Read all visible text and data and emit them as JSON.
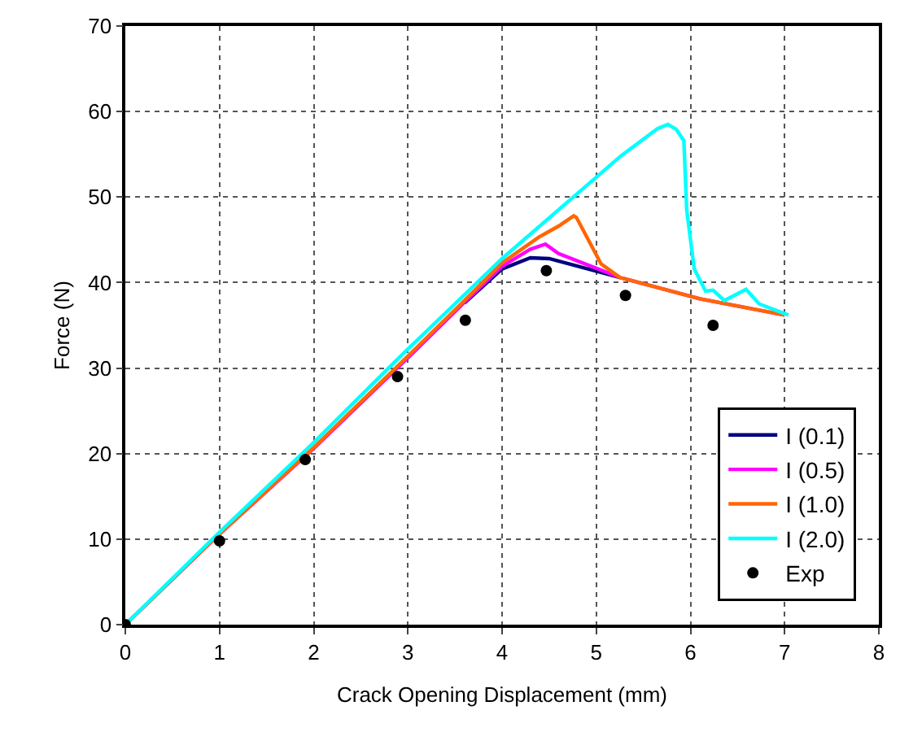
{
  "chart_data": {
    "type": "line",
    "xlabel": "Crack Opening Displacement (mm)",
    "ylabel": "Force (N)",
    "xlim": [
      0,
      8
    ],
    "ylim": [
      0,
      70
    ],
    "xticks": [
      0,
      1,
      2,
      3,
      4,
      5,
      6,
      7,
      8
    ],
    "yticks": [
      0,
      10,
      20,
      30,
      40,
      50,
      60,
      70
    ],
    "grid": true,
    "legend": "bottom right",
    "line_style": "solid",
    "series": [
      {
        "name": "I (0.1)",
        "color": "#000080",
        "marker": "none",
        "x": [
          3.6,
          4.0,
          4.3,
          4.5,
          5.25
        ],
        "values": [
          37.6,
          41.6,
          42.9,
          42.8,
          40.6
        ]
      },
      {
        "name": "I (0.5)",
        "color": "#ff00ff",
        "marker": "none",
        "x": [
          0,
          1,
          2,
          3,
          3.6,
          4.0,
          4.3,
          4.46,
          4.6,
          5.25,
          6.1,
          7.0
        ],
        "values": [
          0,
          10.6,
          20.6,
          31.2,
          37.7,
          41.9,
          43.9,
          44.5,
          43.4,
          40.6,
          38.1,
          36.2
        ]
      },
      {
        "name": "I (1.0)",
        "color": "#ff6600",
        "marker": "none",
        "x": [
          0,
          1,
          2,
          3,
          3.6,
          4.0,
          4.39,
          4.6,
          4.76,
          4.79,
          4.93,
          5.05,
          5.25,
          6.1,
          7.0
        ],
        "values": [
          0,
          10.6,
          20.7,
          31.4,
          37.9,
          42.3,
          45.3,
          46.6,
          47.8,
          47.6,
          44.7,
          42.2,
          40.6,
          38.1,
          36.2
        ]
      },
      {
        "name": "I (2.0)",
        "color": "#00ffff",
        "marker": "none",
        "x": [
          0,
          1,
          2,
          2.96,
          4.0,
          5.25,
          5.65,
          5.76,
          5.85,
          5.93,
          5.96,
          6.04,
          6.16,
          6.24,
          6.36,
          6.59,
          6.73,
          7.04
        ],
        "values": [
          0,
          10.8,
          21.3,
          31.8,
          42.8,
          54.7,
          58.0,
          58.5,
          57.9,
          56.6,
          48.5,
          41.6,
          39.0,
          39.1,
          37.9,
          39.2,
          37.5,
          36.2
        ]
      },
      {
        "name": "Exp",
        "color": "#000000",
        "type": "scatter",
        "marker": "circle",
        "x": [
          0,
          1.0,
          1.91,
          2.89,
          3.61,
          4.47,
          5.31,
          6.24
        ],
        "values": [
          0,
          9.8,
          19.3,
          29.0,
          35.6,
          41.4,
          38.5,
          35.0
        ]
      }
    ]
  }
}
